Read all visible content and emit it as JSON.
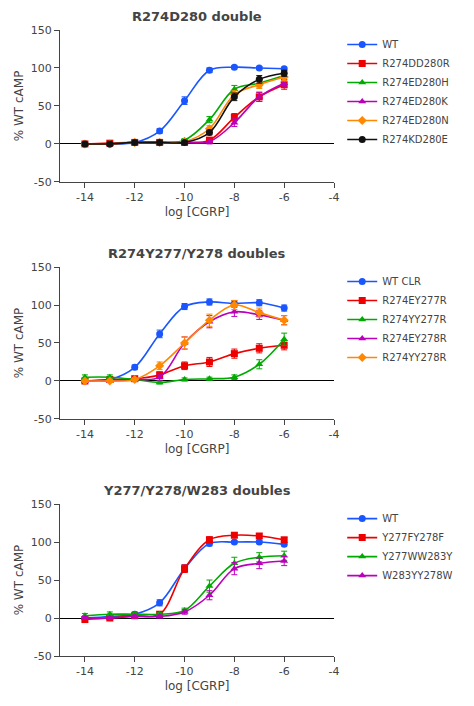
{
  "chart_data": [
    {
      "type": "line",
      "title": "R274D280 double",
      "xlabel": "log [CGRP]",
      "ylabel": "% WT cAMP",
      "x": [
        -14,
        -13,
        -12,
        -11,
        -10,
        -9,
        -8,
        -7,
        -6
      ],
      "xlim": [
        -15,
        -4
      ],
      "xticks": [
        -14,
        -12,
        -10,
        -8,
        -6,
        -4
      ],
      "ylim": [
        -50,
        150
      ],
      "yticks": [
        -50,
        0,
        50,
        100,
        150
      ],
      "grid": false,
      "legend": "right",
      "series": [
        {
          "name": "WT",
          "color": "#1A56FF",
          "marker": "circle",
          "values": [
            0,
            0,
            2,
            17,
            57,
            97,
            101,
            100,
            99
          ],
          "yerr": [
            2,
            2,
            2,
            3,
            5,
            3,
            2,
            2,
            2
          ]
        },
        {
          "name": "R274DD280R",
          "color": "#EE0000",
          "marker": "square",
          "values": [
            0,
            1,
            2,
            2,
            2,
            5,
            35,
            62,
            78
          ],
          "yerr": [
            2,
            2,
            2,
            2,
            2,
            3,
            5,
            6,
            6
          ]
        },
        {
          "name": "R274ED280H",
          "color": "#00AA00",
          "marker": "triangle-up",
          "values": [
            0,
            0,
            2,
            2,
            5,
            32,
            72,
            80,
            90
          ],
          "yerr": [
            2,
            2,
            2,
            2,
            2,
            4,
            5,
            5,
            5
          ]
        },
        {
          "name": "R274ED280K",
          "color": "#BB00BB",
          "marker": "triangle-up",
          "values": [
            0,
            0,
            2,
            2,
            2,
            3,
            28,
            62,
            80
          ],
          "yerr": [
            2,
            2,
            2,
            2,
            2,
            3,
            5,
            6,
            5
          ]
        },
        {
          "name": "R274ED280N",
          "color": "#FF8800",
          "marker": "diamond",
          "values": [
            0,
            0,
            2,
            2,
            3,
            20,
            65,
            78,
            88
          ],
          "yerr": [
            2,
            2,
            2,
            2,
            2,
            4,
            5,
            5,
            5
          ]
        },
        {
          "name": "R274KD280E",
          "color": "#111111",
          "marker": "circle",
          "values": [
            0,
            0,
            2,
            2,
            2,
            15,
            62,
            85,
            93
          ],
          "yerr": [
            2,
            2,
            2,
            2,
            2,
            3,
            5,
            5,
            4
          ]
        }
      ]
    },
    {
      "type": "line",
      "title": "R274Y277/Y278 doubles",
      "xlabel": "log [CGRP]",
      "ylabel": "% WT cAMP",
      "x": [
        -14,
        -13,
        -12,
        -11,
        -10,
        -9,
        -8,
        -7,
        -6
      ],
      "xlim": [
        -15,
        -4
      ],
      "xticks": [
        -14,
        -12,
        -10,
        -8,
        -6,
        -4
      ],
      "ylim": [
        -50,
        150
      ],
      "yticks": [
        -50,
        0,
        50,
        100,
        150
      ],
      "grid": false,
      "legend": "right",
      "series": [
        {
          "name": "WT CLR",
          "color": "#1A56FF",
          "marker": "circle",
          "values": [
            0,
            2,
            18,
            62,
            98,
            104,
            102,
            103,
            96
          ],
          "yerr": [
            2,
            2,
            3,
            5,
            4,
            4,
            4,
            4,
            4
          ]
        },
        {
          "name": "R274EY277R",
          "color": "#EE0000",
          "marker": "square",
          "values": [
            0,
            2,
            3,
            8,
            20,
            25,
            36,
            43,
            47
          ],
          "yerr": [
            2,
            2,
            2,
            4,
            5,
            6,
            6,
            6,
            6
          ]
        },
        {
          "name": "R274YY277R",
          "color": "#00AA00",
          "marker": "triangle-up",
          "values": [
            5,
            5,
            2,
            -2,
            2,
            3,
            5,
            22,
            55
          ],
          "yerr": [
            3,
            3,
            2,
            2,
            2,
            2,
            3,
            6,
            8
          ]
        },
        {
          "name": "R274EY278R",
          "color": "#BB00BB",
          "marker": "triangle-up",
          "values": [
            0,
            0,
            2,
            5,
            50,
            78,
            91,
            87,
            80
          ],
          "yerr": [
            2,
            2,
            2,
            4,
            8,
            8,
            6,
            6,
            6
          ]
        },
        {
          "name": "R274YY278R",
          "color": "#FF8800",
          "marker": "diamond",
          "values": [
            0,
            0,
            2,
            20,
            50,
            80,
            100,
            90,
            80
          ],
          "yerr": [
            2,
            2,
            2,
            5,
            8,
            8,
            6,
            6,
            6
          ]
        }
      ]
    },
    {
      "type": "line",
      "title": "Y277/Y278/W283 doubles",
      "xlabel": "log [CGRP]",
      "ylabel": "% WT cAMP",
      "x": [
        -14,
        -13,
        -12,
        -11,
        -10,
        -9,
        -8,
        -7,
        -6
      ],
      "xlim": [
        -15,
        -4
      ],
      "xticks": [
        -14,
        -12,
        -10,
        -8,
        -6,
        -4
      ],
      "ylim": [
        -50,
        150
      ],
      "yticks": [
        -50,
        0,
        50,
        100,
        150
      ],
      "grid": false,
      "legend": "right",
      "series": [
        {
          "name": "WT",
          "color": "#1A56FF",
          "marker": "circle",
          "values": [
            0,
            2,
            5,
            20,
            65,
            98,
            100,
            100,
            97
          ],
          "yerr": [
            2,
            2,
            3,
            4,
            5,
            3,
            2,
            2,
            2
          ]
        },
        {
          "name": "Y277FY278F",
          "color": "#EE0000",
          "marker": "square",
          "values": [
            -2,
            0,
            3,
            5,
            65,
            103,
            109,
            108,
            103
          ],
          "yerr": [
            2,
            2,
            2,
            3,
            5,
            4,
            3,
            3,
            3
          ]
        },
        {
          "name": "Y277WW283Y",
          "color": "#00AA00",
          "marker": "triangle-up",
          "values": [
            3,
            5,
            5,
            5,
            10,
            42,
            72,
            80,
            82
          ],
          "yerr": [
            3,
            3,
            2,
            2,
            3,
            8,
            8,
            6,
            6
          ]
        },
        {
          "name": "W283YY278W",
          "color": "#BB00BB",
          "marker": "triangle-up",
          "values": [
            0,
            0,
            2,
            2,
            8,
            30,
            65,
            72,
            75
          ],
          "yerr": [
            2,
            2,
            2,
            2,
            3,
            6,
            8,
            7,
            6
          ]
        }
      ]
    }
  ]
}
